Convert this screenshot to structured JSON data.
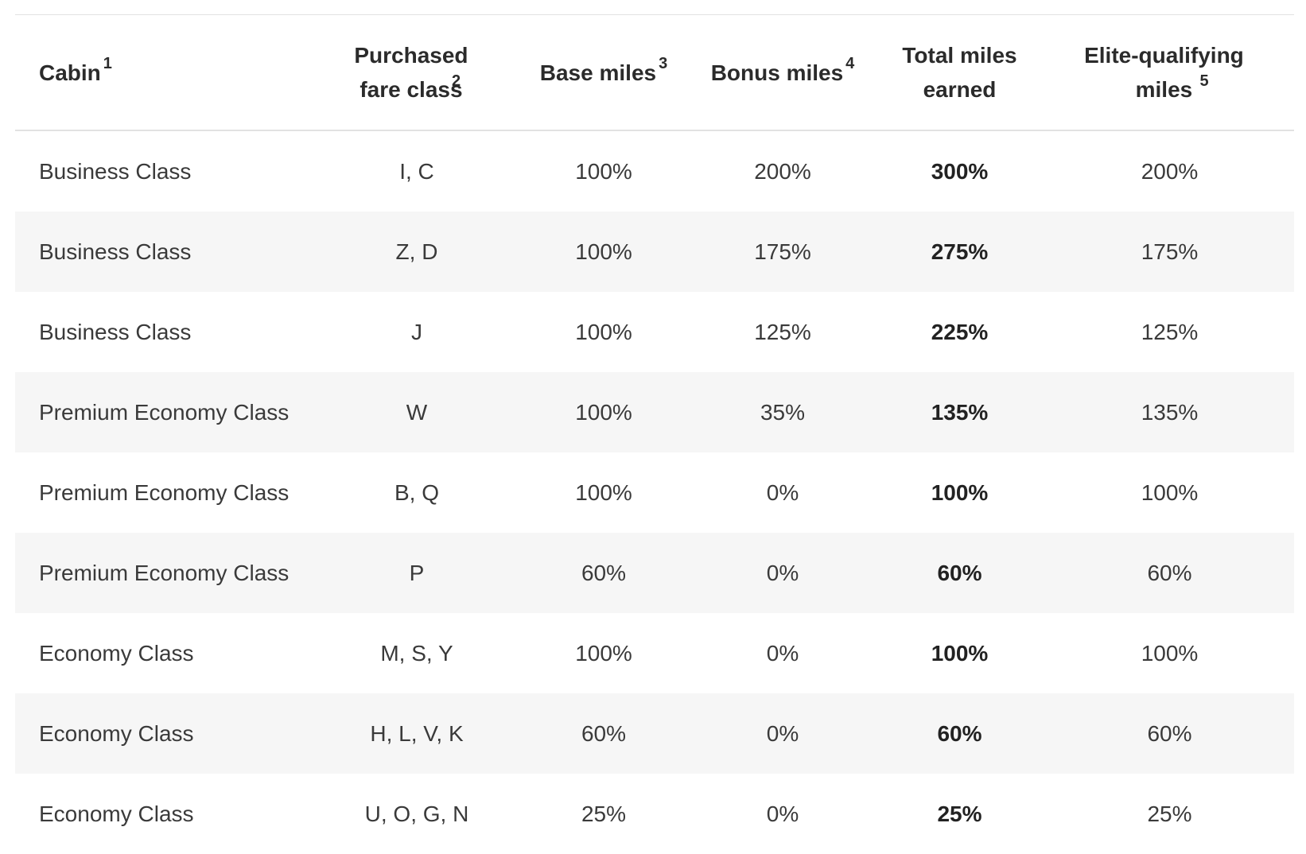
{
  "table": {
    "headers": [
      {
        "label": "Cabin",
        "sup": "1"
      },
      {
        "label": "Purchased fare class",
        "sup": "2"
      },
      {
        "label": "Base miles",
        "sup": "3"
      },
      {
        "label": "Bonus miles",
        "sup": "4"
      },
      {
        "label": "Total miles earned",
        "sup": ""
      },
      {
        "label": "Elite-qualifying miles",
        "sup": "5"
      }
    ],
    "rows": [
      {
        "cabin": "Business Class",
        "fare": "I, C",
        "base": "100%",
        "bonus": "200%",
        "total": "300%",
        "eqm": "200%"
      },
      {
        "cabin": "Business Class",
        "fare": "Z, D",
        "base": "100%",
        "bonus": "175%",
        "total": "275%",
        "eqm": "175%"
      },
      {
        "cabin": "Business Class",
        "fare": "J",
        "base": "100%",
        "bonus": "125%",
        "total": "225%",
        "eqm": "125%"
      },
      {
        "cabin": "Premium Economy Class",
        "fare": "W",
        "base": "100%",
        "bonus": "35%",
        "total": "135%",
        "eqm": "135%"
      },
      {
        "cabin": "Premium Economy Class",
        "fare": "B, Q",
        "base": "100%",
        "bonus": "0%",
        "total": "100%",
        "eqm": "100%"
      },
      {
        "cabin": "Premium Economy Class",
        "fare": "P",
        "base": "60%",
        "bonus": "0%",
        "total": "60%",
        "eqm": "60%"
      },
      {
        "cabin": "Economy Class",
        "fare": "M, S, Y",
        "base": "100%",
        "bonus": "0%",
        "total": "100%",
        "eqm": "100%"
      },
      {
        "cabin": "Economy Class",
        "fare": "H, L, V, K",
        "base": "60%",
        "bonus": "0%",
        "total": "60%",
        "eqm": "60%"
      },
      {
        "cabin": "Economy Class",
        "fare": "U, O, G, N",
        "base": "25%",
        "bonus": "0%",
        "total": "25%",
        "eqm": "25%"
      }
    ]
  }
}
